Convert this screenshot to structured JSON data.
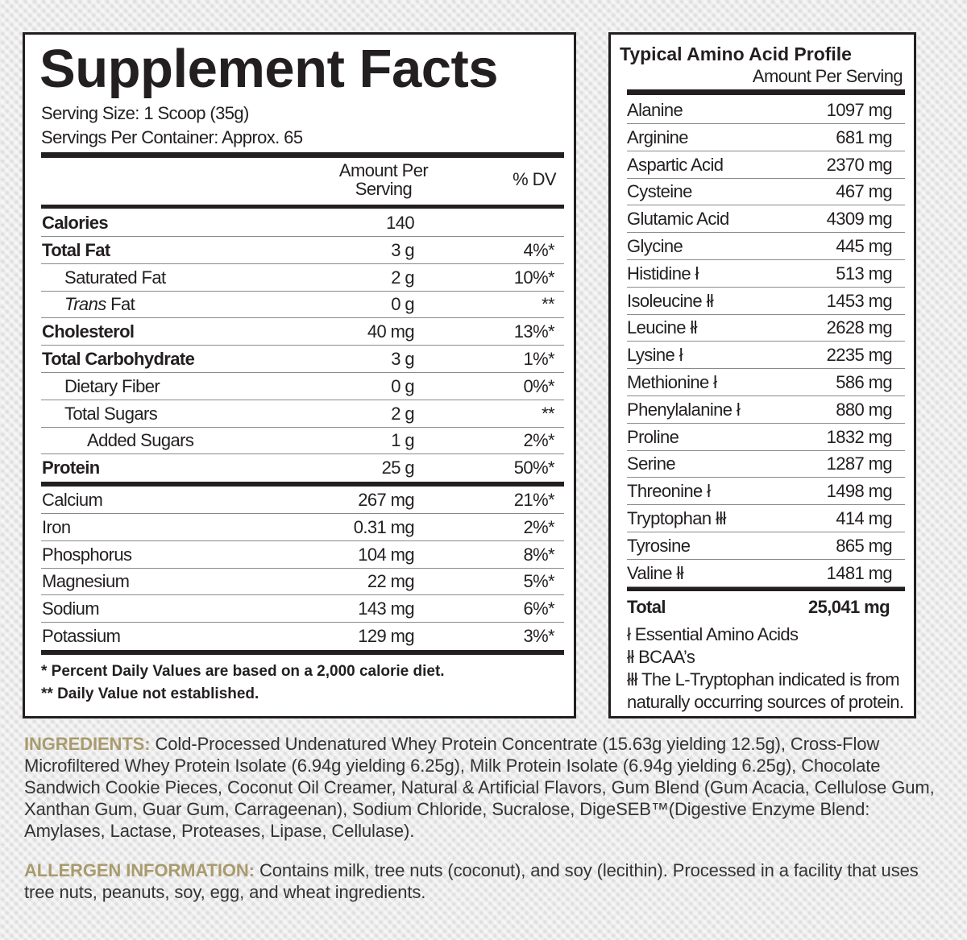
{
  "supplement_facts": {
    "title": "Supplement Facts",
    "serving_size": "Serving Size: 1 Scoop (35g)",
    "servings_per_container": "Servings Per Container: Approx. 65",
    "header": {
      "amount": "Amount Per Serving",
      "dv": "% DV"
    },
    "rows": [
      {
        "name": "Calories",
        "amount": "140"
      },
      {
        "name": "Total Fat",
        "amount": "3 g",
        "dv": "4%*"
      },
      {
        "name": "Saturated Fat",
        "amount": "2 g",
        "dv": "10%*"
      },
      {
        "name_italic": "Trans",
        "name": " Fat",
        "amount": "0 g",
        "dv": "**"
      },
      {
        "name": "Cholesterol",
        "amount": "40 mg",
        "dv": "13%*"
      },
      {
        "name": "Total Carbohydrate",
        "amount": "3 g",
        "dv": "1%*"
      },
      {
        "name": "Dietary Fiber",
        "amount": "0 g",
        "dv": "0%*"
      },
      {
        "name": "Total Sugars",
        "amount": "2 g",
        "dv": "**"
      },
      {
        "name": "Added Sugars",
        "amount": "1 g",
        "dv": "2%*"
      },
      {
        "name": "Protein",
        "amount": "25 g",
        "dv": "50%*"
      },
      {
        "name": "Calcium",
        "amount": "267 mg",
        "dv": "21%*"
      },
      {
        "name": "Iron",
        "amount": "0.31 mg",
        "dv": "2%*"
      },
      {
        "name": "Phosphorus",
        "amount": "104 mg",
        "dv": "8%*"
      },
      {
        "name": "Magnesium",
        "amount": "22 mg",
        "dv": "5%*"
      },
      {
        "name": "Sodium",
        "amount": "143 mg",
        "dv": "6%*"
      },
      {
        "name": "Potassium",
        "amount": "129 mg",
        "dv": "3%*"
      }
    ],
    "footnotes": [
      "* Percent Daily Values are based on a 2,000 calorie diet.",
      "** Daily Value not established."
    ]
  },
  "amino_profile": {
    "title": "Typical Amino Acid Profile",
    "subtitle": "Amount Per Serving",
    "rows": [
      {
        "name": "Alanine",
        "amount": "1097 mg"
      },
      {
        "name": "Arginine",
        "amount": "681 mg"
      },
      {
        "name": "Aspartic Acid",
        "amount": "2370 mg"
      },
      {
        "name": "Cysteine",
        "amount": "467 mg"
      },
      {
        "name": "Glutamic Acid",
        "amount": "4309 mg"
      },
      {
        "name": "Glycine",
        "amount": "445 mg"
      },
      {
        "name": "Histidine ł",
        "amount": "513 mg"
      },
      {
        "name": "Isoleucine łł",
        "amount": "1453 mg"
      },
      {
        "name": "Leucine łł",
        "amount": "2628 mg"
      },
      {
        "name": "Lysine ł",
        "amount": "2235 mg"
      },
      {
        "name": "Methionine ł",
        "amount": "586 mg"
      },
      {
        "name": "Phenylalanine ł",
        "amount": "880 mg"
      },
      {
        "name": "Proline",
        "amount": "1832 mg"
      },
      {
        "name": "Serine",
        "amount": "1287 mg"
      },
      {
        "name": "Threonine ł",
        "amount": "1498 mg"
      },
      {
        "name": "Tryptophan łłł",
        "amount": "414 mg"
      },
      {
        "name": "Tyrosine",
        "amount": "865 mg"
      },
      {
        "name": "Valine łł",
        "amount": "1481 mg"
      }
    ],
    "total": {
      "name": "Total",
      "amount": "25,041 mg"
    },
    "footnotes": [
      "ł Essential Amino Acids",
      "łł BCAA’s",
      "łłł The L-Tryptophan indicated is from naturally occurring sources of protein."
    ]
  },
  "ingredients": {
    "label": "INGREDIENTS:",
    "text": "Cold-Processed Undenatured Whey Protein Concentrate (15.63g yielding 12.5g), Cross-Flow Microfiltered Whey Protein Isolate (6.94g yielding 6.25g), Milk Protein Isolate (6.94g yielding 6.25g), Chocolate Sandwich Cookie Pieces, Coconut Oil Creamer, Natural & Artificial Flavors, Gum Blend (Gum Acacia, Cellulose Gum, Xanthan Gum, Guar Gum, Carrageenan), Sodium Chloride, Sucralose, DigeSEB™(Digestive Enzyme Blend: Amylases, Lactase, Proteases, Lipase, Cellulase)."
  },
  "allergen": {
    "label": "ALLERGEN INFORMATION:",
    "text": "Contains milk, tree nuts (coconut), and soy (lecithin). Processed in a facility that uses tree nuts, peanuts, soy, egg, and wheat ingredients."
  }
}
